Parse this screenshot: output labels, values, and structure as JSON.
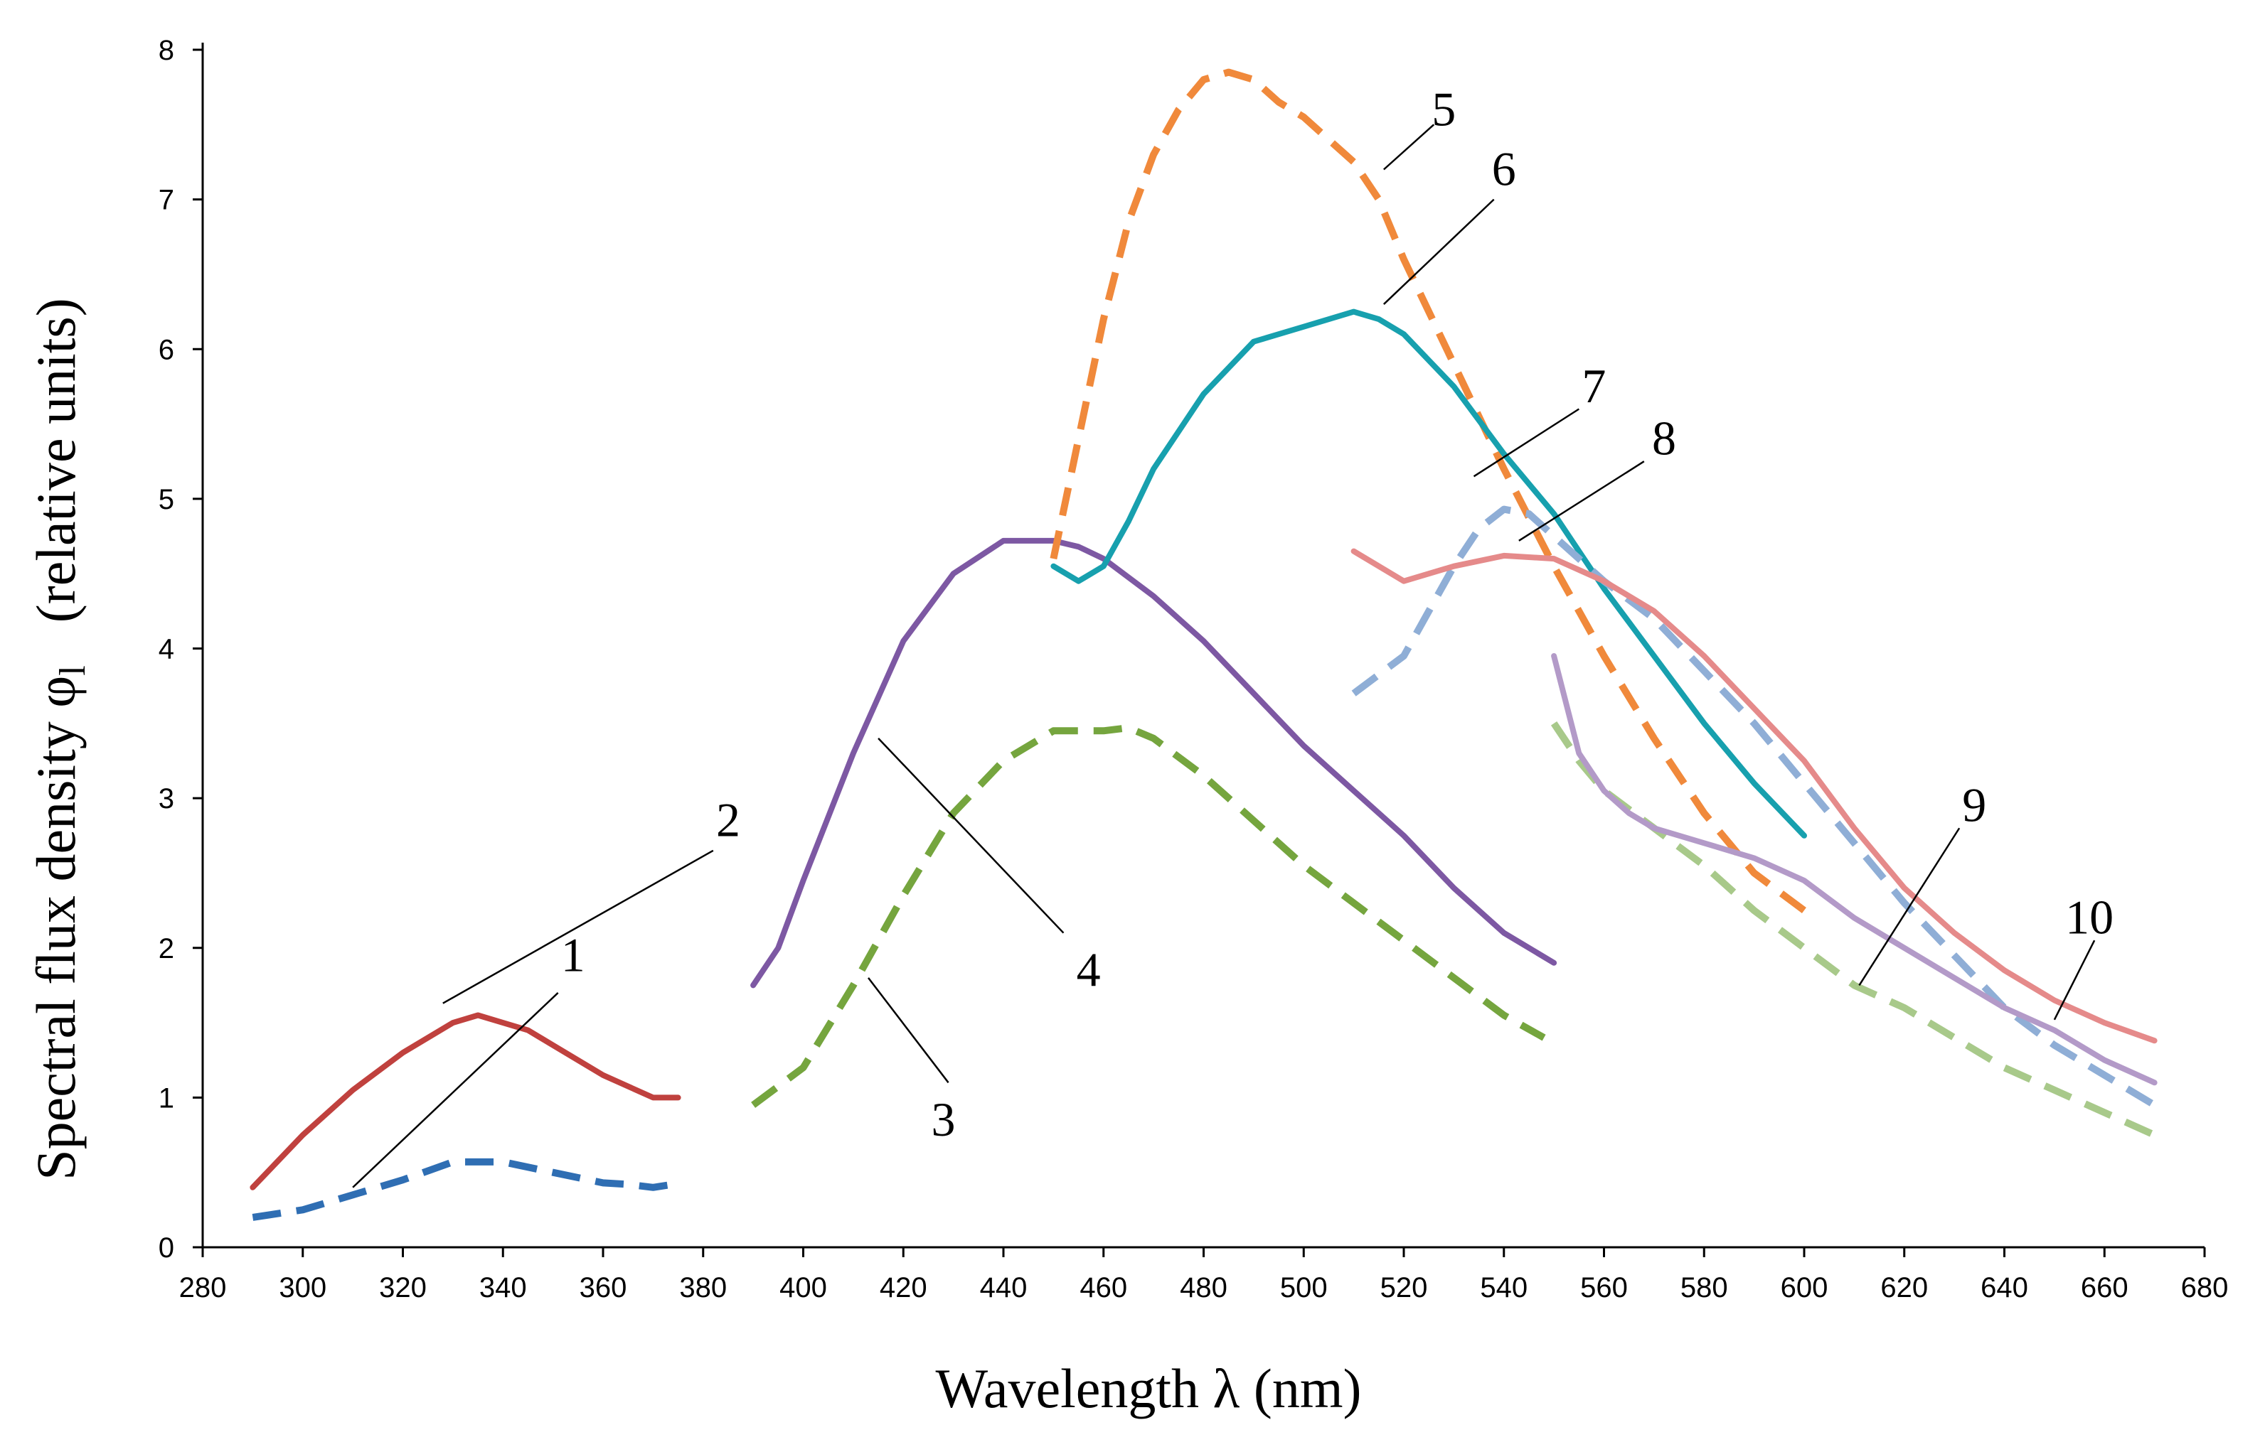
{
  "chart_data": {
    "type": "line",
    "title": "",
    "xlabel": "Wavelength  λ  (nm)",
    "ylabel": "Spectral flux density   φ",
    "ylabel_subscript": "l",
    "ylabel_suffix": "(relative units)",
    "xlim": [
      280,
      680
    ],
    "ylim": [
      0,
      8
    ],
    "x_ticks": [
      280,
      300,
      320,
      340,
      360,
      380,
      400,
      420,
      440,
      460,
      480,
      500,
      520,
      540,
      560,
      580,
      600,
      620,
      640,
      660,
      680
    ],
    "y_ticks": [
      0,
      1,
      2,
      3,
      4,
      5,
      6,
      7,
      8
    ],
    "grid": false,
    "legend": "none",
    "series": [
      {
        "name": "1",
        "color": "#2F6EB3",
        "dash": true,
        "x": [
          290,
          300,
          310,
          320,
          330,
          340,
          350,
          360,
          365,
          370,
          374
        ],
        "y": [
          0.2,
          0.25,
          0.35,
          0.45,
          0.57,
          0.57,
          0.5,
          0.43,
          0.42,
          0.4,
          0.42
        ]
      },
      {
        "name": "2",
        "color": "#C0413E",
        "dash": false,
        "x": [
          290,
          300,
          310,
          320,
          330,
          335,
          340,
          345,
          350,
          360,
          370,
          375
        ],
        "y": [
          0.4,
          0.75,
          1.05,
          1.3,
          1.5,
          1.55,
          1.5,
          1.45,
          1.35,
          1.15,
          1.0,
          1.0
        ]
      },
      {
        "name": "3",
        "color": "#75A53E",
        "dash": true,
        "x": [
          390,
          400,
          410,
          420,
          430,
          440,
          450,
          460,
          465,
          470,
          480,
          490,
          500,
          510,
          520,
          530,
          540,
          548
        ],
        "y": [
          0.95,
          1.2,
          1.75,
          2.35,
          2.9,
          3.25,
          3.45,
          3.45,
          3.47,
          3.4,
          3.15,
          2.85,
          2.55,
          2.3,
          2.05,
          1.8,
          1.55,
          1.4
        ]
      },
      {
        "name": "4",
        "color": "#7D58A3",
        "dash": false,
        "x": [
          390,
          395,
          400,
          410,
          420,
          430,
          440,
          450,
          455,
          460,
          470,
          480,
          490,
          500,
          510,
          520,
          530,
          540,
          550
        ],
        "y": [
          1.75,
          2.0,
          2.45,
          3.3,
          4.05,
          4.5,
          4.72,
          4.72,
          4.68,
          4.6,
          4.35,
          4.05,
          3.7,
          3.35,
          3.05,
          2.75,
          2.4,
          2.1,
          1.9
        ]
      },
      {
        "name": "5",
        "color": "#F0893B",
        "dash": true,
        "x": [
          450,
          455,
          460,
          465,
          470,
          475,
          480,
          485,
          490,
          495,
          500,
          505,
          510,
          515,
          520,
          530,
          540,
          550,
          560,
          570,
          580,
          590,
          600
        ],
        "y": [
          4.6,
          5.4,
          6.2,
          6.85,
          7.3,
          7.6,
          7.8,
          7.85,
          7.8,
          7.65,
          7.55,
          7.4,
          7.25,
          7.0,
          6.6,
          5.9,
          5.2,
          4.55,
          3.95,
          3.4,
          2.9,
          2.5,
          2.25
        ]
      },
      {
        "name": "6",
        "color": "#17A0AE",
        "dash": false,
        "x": [
          450,
          455,
          460,
          465,
          470,
          480,
          490,
          500,
          510,
          515,
          520,
          530,
          540,
          550,
          560,
          570,
          580,
          590,
          600
        ],
        "y": [
          4.55,
          4.45,
          4.55,
          4.85,
          5.2,
          5.7,
          6.05,
          6.15,
          6.25,
          6.2,
          6.1,
          5.75,
          5.3,
          4.9,
          4.4,
          3.95,
          3.5,
          3.1,
          2.75
        ]
      },
      {
        "name": "7",
        "color": "#8FAED6",
        "dash": true,
        "x": [
          510,
          520,
          530,
          535,
          540,
          545,
          550,
          560,
          570,
          580,
          590,
          600,
          610,
          620,
          630,
          640,
          650,
          660,
          670
        ],
        "y": [
          3.7,
          3.95,
          4.55,
          4.8,
          4.93,
          4.9,
          4.75,
          4.45,
          4.2,
          3.85,
          3.5,
          3.1,
          2.7,
          2.3,
          1.95,
          1.6,
          1.35,
          1.15,
          0.95
        ]
      },
      {
        "name": "8",
        "color": "#E58A8A",
        "dash": false,
        "x": [
          510,
          520,
          530,
          540,
          550,
          560,
          570,
          580,
          590,
          600,
          610,
          620,
          630,
          640,
          650,
          660,
          670
        ],
        "y": [
          4.65,
          4.45,
          4.55,
          4.62,
          4.6,
          4.45,
          4.25,
          3.95,
          3.6,
          3.25,
          2.8,
          2.4,
          2.1,
          1.85,
          1.65,
          1.5,
          1.38
        ]
      },
      {
        "name": "9",
        "color": "#A8C98A",
        "dash": true,
        "x": [
          550,
          555,
          560,
          570,
          580,
          590,
          600,
          610,
          620,
          630,
          640,
          650,
          660,
          670
        ],
        "y": [
          3.5,
          3.25,
          3.05,
          2.8,
          2.55,
          2.25,
          2.0,
          1.75,
          1.6,
          1.4,
          1.2,
          1.05,
          0.9,
          0.75
        ]
      },
      {
        "name": "10",
        "color": "#B39AC8",
        "dash": false,
        "x": [
          550,
          555,
          560,
          565,
          570,
          580,
          590,
          600,
          610,
          620,
          630,
          640,
          650,
          660,
          670
        ],
        "y": [
          3.95,
          3.3,
          3.05,
          2.9,
          2.8,
          2.7,
          2.6,
          2.45,
          2.2,
          2.0,
          1.8,
          1.6,
          1.45,
          1.25,
          1.1
        ]
      }
    ],
    "annotations": [
      {
        "text": "1",
        "x": 354,
        "y": 1.95,
        "target_x": 310,
        "target_y": 0.4,
        "line_from_x": 351,
        "line_from_y": 1.7
      },
      {
        "text": "2",
        "x": 385,
        "y": 2.85,
        "target_x": 328,
        "target_y": 1.63,
        "line_from_x": 382,
        "line_from_y": 2.65
      },
      {
        "text": "3",
        "x": 428,
        "y": 0.85,
        "target_x": 413,
        "target_y": 1.8,
        "line_from_x": 429,
        "line_from_y": 1.1
      },
      {
        "text": "4",
        "x": 457,
        "y": 1.85,
        "target_x": 415,
        "target_y": 3.4,
        "line_from_x": 452,
        "line_from_y": 2.1
      },
      {
        "text": "5",
        "x": 528,
        "y": 7.6,
        "target_x": 516,
        "target_y": 7.2,
        "line_from_x": 526,
        "line_from_y": 7.5
      },
      {
        "text": "6",
        "x": 540,
        "y": 7.2,
        "target_x": 516,
        "target_y": 6.3,
        "line_from_x": 538,
        "line_from_y": 7.0
      },
      {
        "text": "7",
        "x": 558,
        "y": 5.75,
        "target_x": 534,
        "target_y": 5.15,
        "line_from_x": 555,
        "line_from_y": 5.6
      },
      {
        "text": "8",
        "x": 572,
        "y": 5.4,
        "target_x": 543,
        "target_y": 4.72,
        "line_from_x": 568,
        "line_from_y": 5.25
      },
      {
        "text": "9",
        "x": 634,
        "y": 2.95,
        "target_x": 611,
        "target_y": 1.75,
        "line_from_x": 631,
        "line_from_y": 2.8
      },
      {
        "text": "10",
        "x": 657,
        "y": 2.2,
        "target_x": 650,
        "target_y": 1.52,
        "line_from_x": 658,
        "line_from_y": 2.05
      }
    ]
  }
}
